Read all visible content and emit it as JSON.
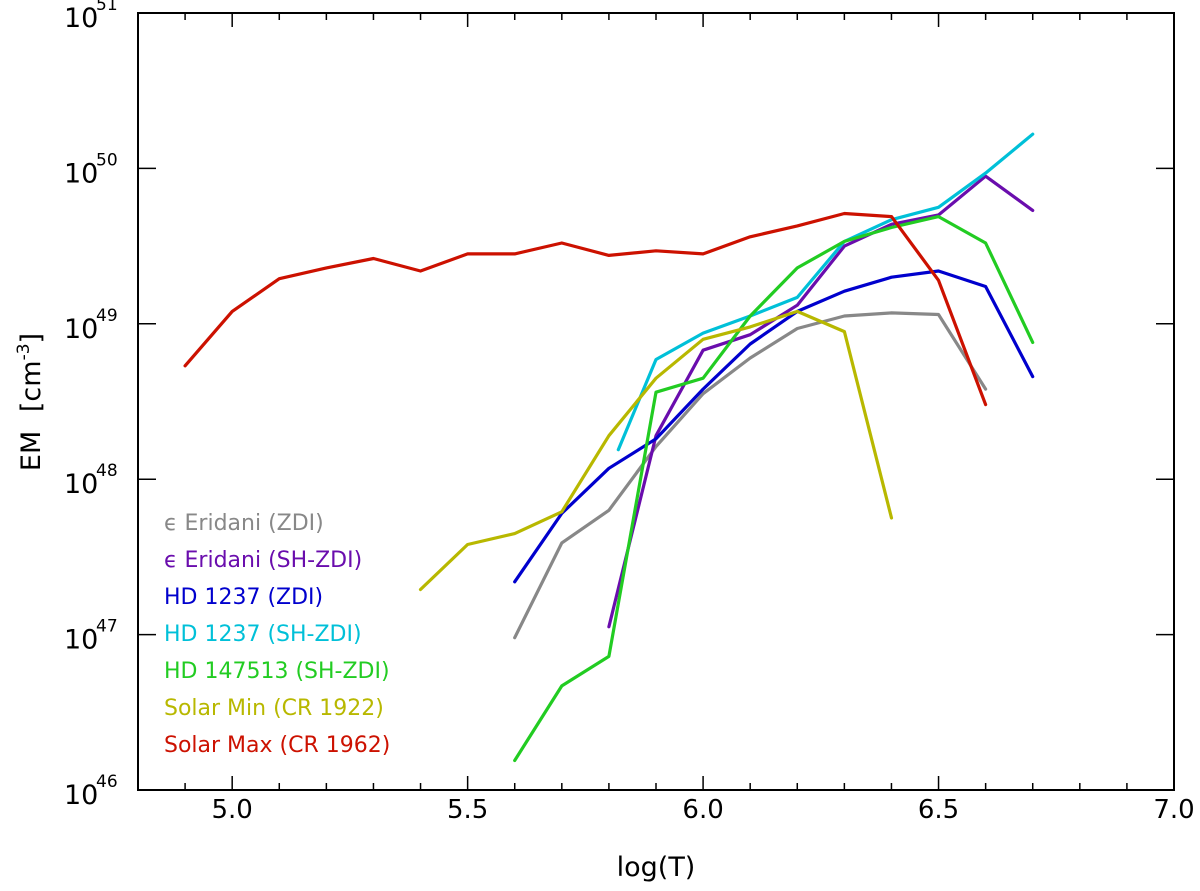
{
  "chart_data": {
    "type": "line",
    "title": "",
    "xlabel": "log(T)",
    "ylabel": {
      "base": "EM",
      "unit": "cm",
      "unit_exp": "-3"
    },
    "xlim": [
      4.8,
      7.0
    ],
    "ylim": [
      1e+46,
      1e+51
    ],
    "yscale": "log",
    "xticks": [
      {
        "value": 5.0,
        "label": "5.0"
      },
      {
        "value": 5.5,
        "label": "5.5"
      },
      {
        "value": 6.0,
        "label": "6.0"
      },
      {
        "value": 6.5,
        "label": "6.5"
      },
      {
        "value": 7.0,
        "label": "7.0"
      }
    ],
    "yticks": [
      {
        "exp": 46,
        "base": "10",
        "exp_label": "46"
      },
      {
        "exp": 47,
        "base": "10",
        "exp_label": "47"
      },
      {
        "exp": 48,
        "base": "10",
        "exp_label": "48"
      },
      {
        "exp": 49,
        "base": "10",
        "exp_label": "49"
      },
      {
        "exp": 50,
        "base": "10",
        "exp_label": "50"
      },
      {
        "exp": 51,
        "base": "10",
        "exp_label": "51"
      }
    ],
    "legend_position": "bottom-left",
    "series": [
      {
        "name": "ϵ Eridani (ZDI)",
        "color": "#888888",
        "x": [
          5.6,
          5.7,
          5.8,
          5.9,
          6.0,
          6.1,
          6.2,
          6.3,
          6.4,
          6.5,
          6.6
        ],
        "y": [
          46.98,
          47.59,
          47.8,
          48.21,
          48.55,
          48.78,
          48.97,
          49.05,
          49.07,
          49.06,
          48.58
        ]
      },
      {
        "name": "ϵ Eridani (SH-ZDI)",
        "color": "#6a0dad",
        "x": [
          5.8,
          5.9,
          6.0,
          6.1,
          6.2,
          6.3,
          6.4,
          6.5,
          6.6,
          6.7
        ],
        "y": [
          47.05,
          48.28,
          48.83,
          48.93,
          49.12,
          49.5,
          49.64,
          49.7,
          49.95,
          49.73
        ]
      },
      {
        "name": "HD 1237 (ZDI)",
        "color": "#0000cd",
        "x": [
          5.6,
          5.7,
          5.8,
          5.9,
          6.0,
          6.1,
          6.2,
          6.3,
          6.4,
          6.5,
          6.6,
          6.7
        ],
        "y": [
          47.34,
          47.78,
          48.07,
          48.26,
          48.58,
          48.87,
          49.08,
          49.21,
          49.3,
          49.34,
          49.24,
          48.66
        ]
      },
      {
        "name": "HD 1237 (SH-ZDI)",
        "color": "#00c0d8",
        "x": [
          5.82,
          5.9,
          6.0,
          6.1,
          6.2,
          6.3,
          6.4,
          6.5,
          6.6,
          6.7
        ],
        "y": [
          48.19,
          48.77,
          48.94,
          49.05,
          49.17,
          49.53,
          49.67,
          49.75,
          49.97,
          50.22
        ]
      },
      {
        "name": "HD 147513 (SH-ZDI)",
        "color": "#22cc22",
        "x": [
          5.6,
          5.7,
          5.8,
          5.9,
          6.0,
          6.1,
          6.2,
          6.3,
          6.4,
          6.5,
          6.6,
          6.7
        ],
        "y": [
          46.19,
          46.67,
          46.86,
          48.56,
          48.65,
          49.05,
          49.36,
          49.53,
          49.62,
          49.69,
          49.52,
          48.88
        ]
      },
      {
        "name": "Solar Min (CR 1922)",
        "color": "#b8b800",
        "x": [
          5.4,
          5.5,
          5.6,
          5.7,
          5.8,
          5.9,
          6.0,
          6.1,
          6.2,
          6.3,
          6.4
        ],
        "y": [
          47.29,
          47.58,
          47.65,
          47.79,
          48.28,
          48.65,
          48.9,
          48.98,
          49.08,
          48.95,
          47.75
        ]
      },
      {
        "name": "Solar Max (CR 1962)",
        "color": "#cc1100",
        "x": [
          4.9,
          5.0,
          5.1,
          5.2,
          5.3,
          5.4,
          5.5,
          5.6,
          5.7,
          5.8,
          5.9,
          6.0,
          6.1,
          6.2,
          6.3,
          6.4,
          6.5,
          6.6
        ],
        "y": [
          48.73,
          49.08,
          49.29,
          49.36,
          49.42,
          49.34,
          49.45,
          49.45,
          49.52,
          49.44,
          49.47,
          49.45,
          49.56,
          49.63,
          49.71,
          49.69,
          49.28,
          48.48
        ]
      }
    ]
  }
}
